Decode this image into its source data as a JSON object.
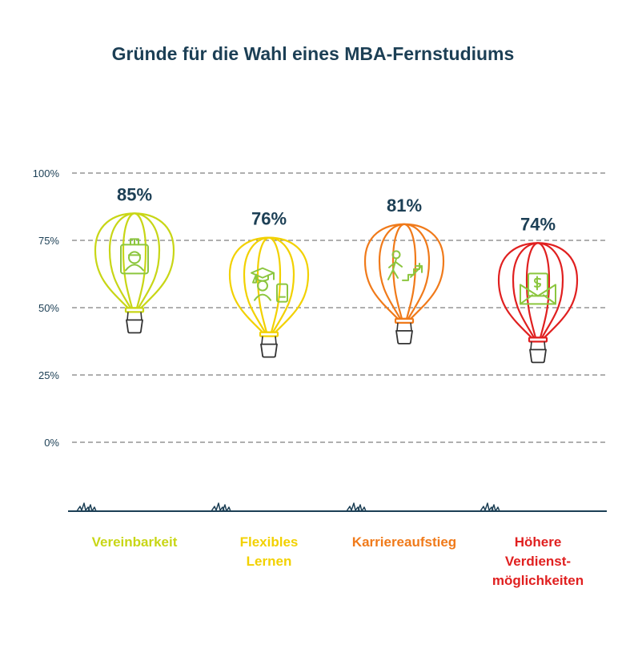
{
  "chart_data": {
    "type": "bar",
    "title": "Gründe für die Wahl eines MBA-Fernstudiums",
    "xlabel": "",
    "ylabel": "",
    "ylim": [
      0,
      100
    ],
    "yticks": [
      "100%",
      "75%",
      "50%",
      "25%",
      "0%"
    ],
    "grid": true,
    "categories": [
      {
        "lines": [
          "Vereinbarkeit"
        ],
        "value": 85,
        "value_label": "85%",
        "color": "#c8d616",
        "icon": "id-badge-icon",
        "icon_color": "#8cc63f"
      },
      {
        "lines": [
          "Flexibles",
          "Lernen"
        ],
        "value": 76,
        "value_label": "76%",
        "color": "#f2d100",
        "icon": "graduate-mobile-icon",
        "icon_color": "#8cc63f"
      },
      {
        "lines": [
          "Karriereaufstieg"
        ],
        "value": 81,
        "value_label": "81%",
        "color": "#f07a1a",
        "icon": "career-stairs-icon",
        "icon_color": "#8cc63f"
      },
      {
        "lines": [
          "Höhere",
          "Verdienst-",
          "möglichkeiten"
        ],
        "value": 74,
        "value_label": "74%",
        "color": "#e02020",
        "icon": "salary-envelope-icon",
        "icon_color": "#8cc63f"
      }
    ]
  },
  "colors": {
    "text": "#1c3f55",
    "grid": "#7f7f7f",
    "ground": "#1c3f55",
    "basket": "#333333"
  }
}
